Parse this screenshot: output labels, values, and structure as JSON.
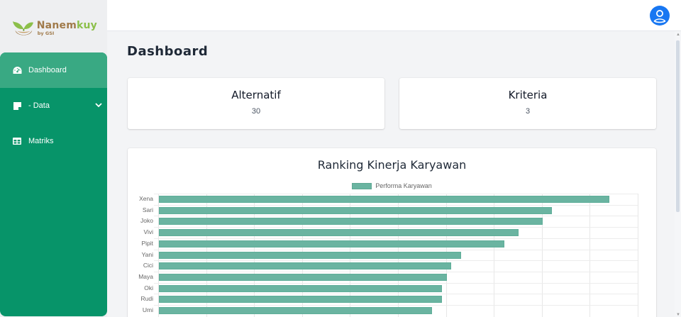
{
  "brand": {
    "name_part1": "Nanem",
    "name_part2": "kuy",
    "byline": "by GSI"
  },
  "sidebar": {
    "items": [
      {
        "label": "Dashboard",
        "icon": "gauge-icon",
        "active": true
      },
      {
        "label": "- Data",
        "icon": "note-icon",
        "active": false,
        "expandable": true
      },
      {
        "label": "Matriks",
        "icon": "table-icon",
        "active": false
      }
    ]
  },
  "header": {
    "avatar_icon": "user-circle-icon"
  },
  "page": {
    "title": "Dashboard"
  },
  "stats": [
    {
      "title": "Alternatif",
      "value": "30"
    },
    {
      "title": "Kriteria",
      "value": "3"
    }
  ],
  "colors": {
    "sidebar": "#079469",
    "sidebar_active": "#39a983",
    "bar": "#6ab4a1",
    "avatar": "#1877f2"
  },
  "chart": {
    "title": "Ranking Kinerja Karyawan",
    "legend": "Performa Karyawan"
  },
  "chart_data": {
    "type": "bar",
    "orientation": "horizontal",
    "title": "Ranking Kinerja Karyawan",
    "xlabel": "",
    "ylabel": "",
    "xlim": [
      0,
      1
    ],
    "grid": true,
    "legend_position": "top",
    "categories": [
      "Xena",
      "Sari",
      "Joko",
      "Vivi",
      "Pipit",
      "Yani",
      "Cici",
      "Maya",
      "Oki",
      "Rudi",
      "Umi"
    ],
    "series": [
      {
        "name": "Performa Karyawan",
        "values": [
          0.94,
          0.82,
          0.8,
          0.75,
          0.72,
          0.63,
          0.61,
          0.6,
          0.59,
          0.59,
          0.57
        ]
      }
    ]
  }
}
